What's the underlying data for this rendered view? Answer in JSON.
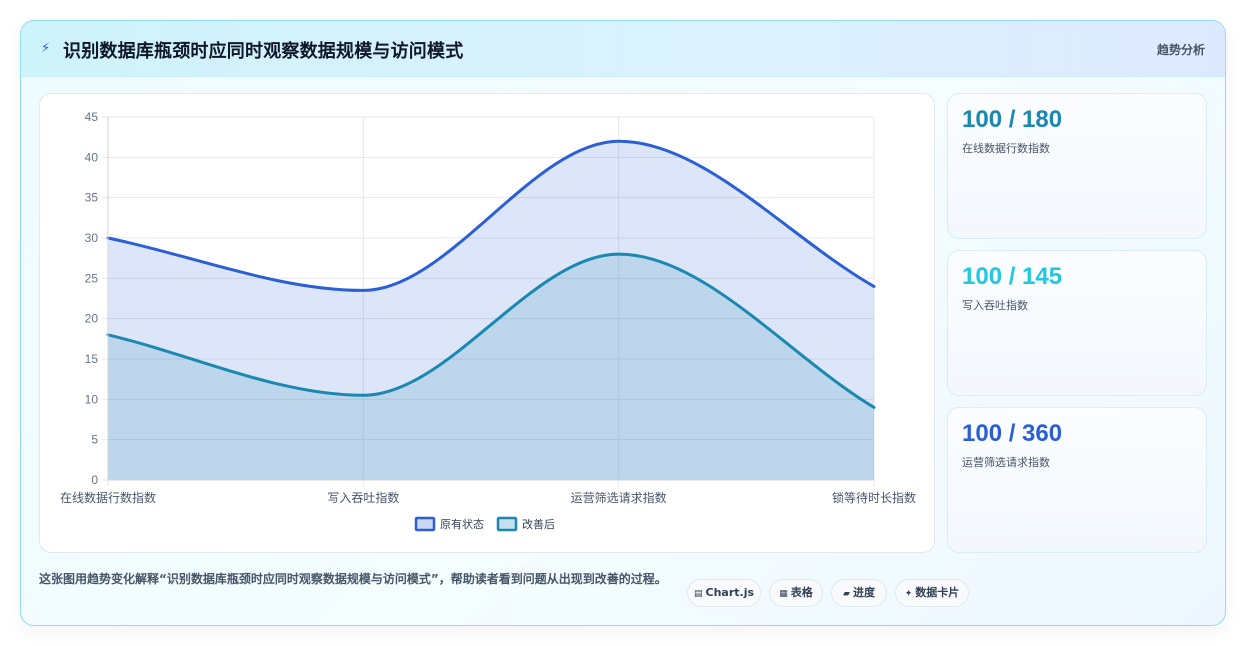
{
  "header": {
    "icon": "lightning-icon",
    "title": "识别数据库瓶颈时应同时观察数据规模与访问模式",
    "tag": "趋势分析"
  },
  "colors": {
    "original": "#2a5fd6",
    "improved": "#1a88b0",
    "stat1": "#1a88b0",
    "stat2": "#22c7e0",
    "stat3": "#2a5fd6"
  },
  "chart_data": {
    "type": "area",
    "categories": [
      "在线数据行数指数",
      "写入吞吐指数",
      "运营筛选请求指数",
      "锁等待时长指数"
    ],
    "series": [
      {
        "name": "原有状态",
        "values": [
          30,
          23.5,
          42,
          24
        ]
      },
      {
        "name": "改善后",
        "values": [
          18,
          10.5,
          28,
          9
        ]
      }
    ],
    "yticks": [
      "0",
      "5",
      "10",
      "15",
      "20",
      "25",
      "30",
      "35",
      "40",
      "45"
    ],
    "ylim": [
      0,
      45
    ],
    "grid": true,
    "legend": "bottom"
  },
  "stats": [
    {
      "value": "100 / 180",
      "label": "在线数据行数指数"
    },
    {
      "value": "100 / 145",
      "label": "写入吞吐指数"
    },
    {
      "value": "100 / 360",
      "label": "运营筛选请求指数"
    }
  ],
  "footer": {
    "description": "这张图用趋势变化解释“识别数据库瓶颈时应同时观察数据规模与访问模式”，帮助读者看到问题从出现到改善的过程。",
    "pills": [
      {
        "icon": "chart-icon",
        "glyph": "▤",
        "label": "Chart.js"
      },
      {
        "icon": "table-icon",
        "glyph": "▦",
        "label": "表格"
      },
      {
        "icon": "progress-icon",
        "glyph": "▰",
        "label": "进度"
      },
      {
        "icon": "card-icon",
        "glyph": "✦",
        "label": "数据卡片"
      }
    ]
  }
}
